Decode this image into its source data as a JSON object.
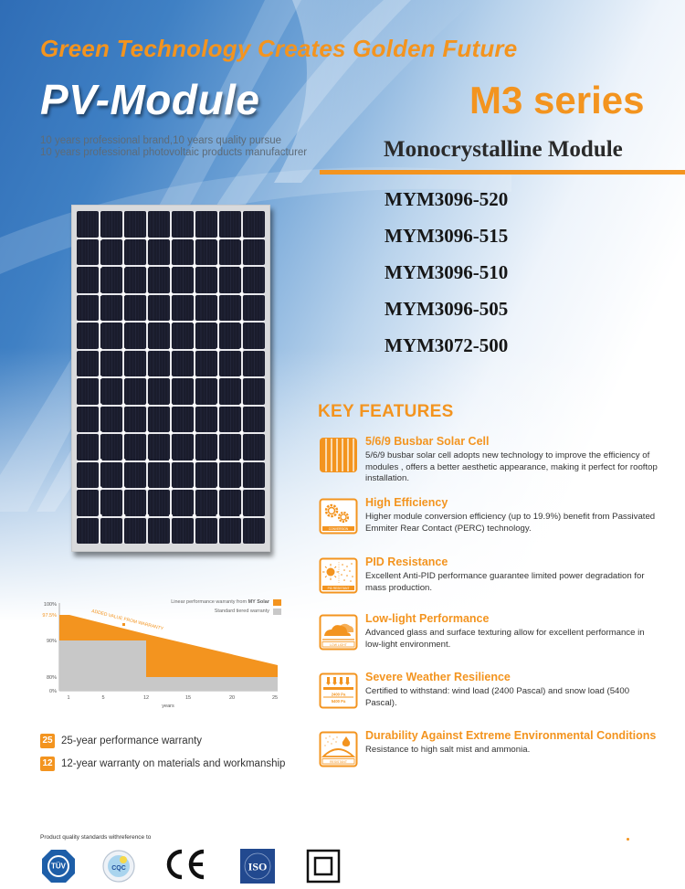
{
  "header": {
    "tagline": "Green Technology Creates Golden Future",
    "product_title": "PV-Module",
    "series": "M3 series",
    "subtitle_lines": [
      "10 years professional brand,10 years quality pursue",
      "10 years professional photovoltaic products manufacturer"
    ],
    "module_type": "Monocrystalline Module"
  },
  "models": [
    "MYM3096-520",
    "MYM3096-515",
    "MYM3096-510",
    "MYM3096-505",
    "MYM3072-500"
  ],
  "panel": {
    "columns": 8,
    "rows": 12,
    "cell_color": "#1c1f30",
    "frame_color": "#d9dadc"
  },
  "colors": {
    "accent_orange": "#f3941f",
    "warranty_gray": "#c8c8c8",
    "heading_dark": "#2a2a2a"
  },
  "chart_data": {
    "type": "area",
    "title": "",
    "xlabel": "years",
    "ylabel": "",
    "x_ticks": [
      "1",
      "5",
      "12",
      "15",
      "20",
      "25"
    ],
    "y_ticks": [
      "0%",
      "80%",
      "90%",
      "97.5%",
      "100%"
    ],
    "highlight_tick": "97.5%",
    "xlim": [
      0,
      25
    ],
    "annotation": "ADDED VALUE FROM WARRANTY",
    "legend": [
      {
        "label_prefix": "Linear performance warranty from ",
        "label_bold": "MY Solar",
        "color": "#f3941f"
      },
      {
        "label_prefix": "Standard tiered warranty",
        "label_bold": "",
        "color": "#c8c8c8"
      }
    ],
    "series": [
      {
        "name": "Linear performance warranty from MY Solar",
        "x": [
          0,
          1,
          5,
          12,
          15,
          20,
          25
        ],
        "values": [
          97.5,
          97.5,
          94.6,
          89.5,
          87.3,
          83.7,
          80.2
        ]
      },
      {
        "name": "Standard tiered warranty",
        "x": [
          0,
          12,
          12,
          25
        ],
        "values": [
          90,
          90,
          80,
          80
        ]
      }
    ]
  },
  "warranty": [
    {
      "badge": "25",
      "text": "25-year performance warranty"
    },
    {
      "badge": "12",
      "text": "12-year warranty on materials and workmanship"
    }
  ],
  "key_features": {
    "title": "KEY FEATURES",
    "items": [
      {
        "icon": "busbar-cell-icon",
        "title": "5/6/9 Busbar Solar Cell",
        "desc": "5/6/9 busbar solar cell adopts new technology to improve the efficiency of modules , offers a better aesthetic appearance, making it perfect for rooftop installation."
      },
      {
        "icon": "gears-conversion-icon",
        "icon_label": "CONVERSION",
        "title": "High Efficiency",
        "desc": "Higher module conversion efficiency (up to 19.9%) benefit from Passivated Emmiter Rear Contact (PERC)  technology."
      },
      {
        "icon": "sun-pid-resistant-icon",
        "icon_label": "PID RESISTANT",
        "title": "PID Resistance",
        "desc": "Excellent Anti-PID performance guarantee limited power degradation for mass production."
      },
      {
        "icon": "cloud-low-light-icon",
        "icon_label": "LOW LIGHT",
        "title": "Low-light Performance",
        "desc": "Advanced glass and surface texturing allow for excellent performance in low-light environment."
      },
      {
        "icon": "load-pressure-icon",
        "icon_label_lines": [
          "2400 Pa",
          "5400 Pa"
        ],
        "title": "Severe Weather Resilience",
        "desc": "Certified to withstand: wind load (2400 Pascal) and snow load (5400 Pascal)."
      },
      {
        "icon": "salt-mist-resistant-icon",
        "icon_label": "RESISTANT",
        "title": "Durability Against Extreme Environmental Conditions",
        "desc": "Resistance to high salt mist and ammonia."
      }
    ]
  },
  "certifications": {
    "label": "Product quality standards withreference to",
    "logos": [
      {
        "name": "tuv-logo",
        "text": "TÜV"
      },
      {
        "name": "cqc-logo",
        "text": "CQC"
      },
      {
        "name": "ce-logo",
        "text": "CE"
      },
      {
        "name": "iso-logo",
        "text": "ISO"
      },
      {
        "name": "class-ii-logo",
        "text": ""
      }
    ]
  }
}
